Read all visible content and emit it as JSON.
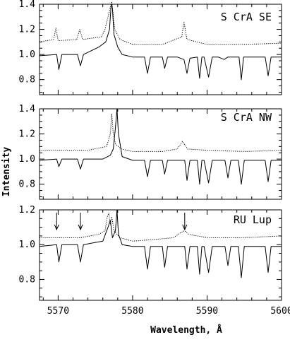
{
  "chart_data": {
    "type": "line",
    "xlabel": "Wavelength, Å",
    "ylabel": "Intensity",
    "xlim": [
      5567.5,
      5600
    ],
    "x_ticks": [
      "5570",
      "5580",
      "5590",
      "5600"
    ],
    "line_color": "#000000",
    "background": "#ffffff",
    "panels": [
      {
        "label": "S CrA SE",
        "ylim": [
          0.68,
          1.4
        ],
        "y_ticks": [
          "0.8",
          "1.0",
          "1.2",
          "1.4"
        ],
        "series": [
          {
            "style": "dotted",
            "x": [
              5567.5,
              5569.4,
              5569.7,
              5570.0,
              5572.5,
              5572.9,
              5573.3,
              5575.8,
              5576.3,
              5576.9,
              5577.2,
              5577.6,
              5578.3,
              5580,
              5582,
              5584,
              5586.6,
              5586.9,
              5587.3,
              5590,
              5595,
              5600
            ],
            "y": [
              1.1,
              1.12,
              1.21,
              1.11,
              1.12,
              1.2,
              1.12,
              1.14,
              1.2,
              1.35,
              1.42,
              1.2,
              1.12,
              1.08,
              1.08,
              1.08,
              1.14,
              1.26,
              1.12,
              1.08,
              1.08,
              1.09
            ]
          },
          {
            "style": "solid",
            "x": [
              5567.5,
              5569.8,
              5570.1,
              5570.5,
              5572.6,
              5573.0,
              5573.4,
              5575.5,
              5576.4,
              5576.9,
              5577.1,
              5577.2,
              5577.3,
              5577.5,
              5578.0,
              5578.6,
              5580,
              5581.6,
              5582.0,
              5582.4,
              5584,
              5584.3,
              5584.7,
              5586,
              5586.9,
              5587.3,
              5587.7,
              5588.7,
              5589.0,
              5589.3,
              5589.6,
              5590.2,
              5590.7,
              5591.5,
              5592.3,
              5592.8,
              5594.3,
              5594.6,
              5594.9,
              5595.5,
              5597.8,
              5598.2,
              5598.6,
              5600
            ],
            "y": [
              0.99,
              1.0,
              0.88,
              1.0,
              1.0,
              0.91,
              1.0,
              1.06,
              1.1,
              1.2,
              1.38,
              1.4,
              1.36,
              1.16,
              1.06,
              1.0,
              0.98,
              0.98,
              0.85,
              0.98,
              0.98,
              0.89,
              0.98,
              0.98,
              0.96,
              0.85,
              0.97,
              0.98,
              0.81,
              0.98,
              0.98,
              0.82,
              0.98,
              0.98,
              0.96,
              0.98,
              0.98,
              0.8,
              0.98,
              0.98,
              0.98,
              0.83,
              0.98,
              0.98
            ]
          }
        ]
      },
      {
        "label": "S CrA NW",
        "ylim": [
          0.68,
          1.4
        ],
        "y_ticks": [
          "0.8",
          "1.0",
          "1.2",
          "1.4"
        ],
        "series": [
          {
            "style": "dotted",
            "x": [
              5567.5,
              5570,
              5574,
              5576.5,
              5577.0,
              5577.2,
              5577.4,
              5577.7,
              5578.5,
              5580,
              5584,
              5586,
              5586.7,
              5587.4,
              5590,
              5595,
              5600
            ],
            "y": [
              1.07,
              1.07,
              1.07,
              1.1,
              1.2,
              1.36,
              1.2,
              1.12,
              1.08,
              1.06,
              1.06,
              1.08,
              1.14,
              1.08,
              1.07,
              1.06,
              1.07
            ]
          },
          {
            "style": "solid",
            "x": [
              5567.5,
              5569.8,
              5570.1,
              5570.5,
              5572.6,
              5573.0,
              5573.4,
              5576.0,
              5577.0,
              5577.4,
              5577.7,
              5577.9,
              5578.1,
              5578.6,
              5580,
              5581.6,
              5582.0,
              5582.4,
              5584,
              5584.3,
              5584.7,
              5587.0,
              5587.3,
              5587.7,
              5588.7,
              5589.0,
              5589.3,
              5589.6,
              5590.2,
              5590.7,
              5592.4,
              5592.8,
              5593.2,
              5594.2,
              5594.6,
              5595.0,
              5597.8,
              5598.2,
              5598.6,
              5600
            ],
            "y": [
              0.99,
              1.0,
              0.94,
              1.0,
              1.0,
              0.92,
              1.0,
              1.0,
              1.03,
              1.08,
              1.25,
              1.4,
              1.2,
              1.02,
              0.99,
              0.99,
              0.86,
              0.99,
              0.99,
              0.88,
              0.99,
              0.99,
              0.83,
              0.99,
              0.99,
              0.8,
              0.99,
              0.99,
              0.81,
              0.99,
              0.99,
              0.85,
              0.99,
              0.99,
              0.8,
              0.99,
              0.99,
              0.82,
              0.99,
              0.99
            ]
          }
        ]
      },
      {
        "label": "RU Lup",
        "ylim": [
          0.68,
          1.2
        ],
        "y_ticks": [
          "0.8",
          "1.0",
          "1.2"
        ],
        "series": [
          {
            "style": "dotted",
            "x": [
              5567.5,
              5570,
              5573,
              5575.5,
              5576.3,
              5576.6,
              5576.8,
              5577.0,
              5577.2,
              5577.5,
              5578.3,
              5580,
              5583,
              5585.5,
              5586.5,
              5587.0,
              5587.5,
              5590,
              5595,
              5600
            ],
            "y": [
              1.04,
              1.04,
              1.04,
              1.06,
              1.08,
              1.16,
              1.18,
              1.12,
              1.16,
              1.08,
              1.04,
              1.02,
              1.03,
              1.04,
              1.07,
              1.08,
              1.06,
              1.04,
              1.04,
              1.05
            ]
          },
          {
            "style": "solid",
            "x": [
              5567.5,
              5569.8,
              5570.1,
              5570.5,
              5572.6,
              5573.0,
              5573.4,
              5576.0,
              5576.7,
              5577.0,
              5577.3,
              5577.7,
              5577.9,
              5578.1,
              5578.6,
              5580,
              5581.6,
              5582.0,
              5582.4,
              5584,
              5584.3,
              5584.7,
              5587.0,
              5587.3,
              5587.7,
              5588.7,
              5589.0,
              5589.3,
              5589.6,
              5590.2,
              5590.7,
              5592.4,
              5592.8,
              5593.2,
              5594.2,
              5594.6,
              5595.0,
              5597.8,
              5598.2,
              5598.6,
              5600
            ],
            "y": [
              0.99,
              1.0,
              0.9,
              1.0,
              1.0,
              0.9,
              1.0,
              1.02,
              1.1,
              1.14,
              1.04,
              1.08,
              1.2,
              1.06,
              1.0,
              0.99,
              0.99,
              0.86,
              0.99,
              0.99,
              0.87,
              0.99,
              0.99,
              0.86,
              0.99,
              0.99,
              0.83,
              0.99,
              0.99,
              0.84,
              0.99,
              0.99,
              0.88,
              0.99,
              0.99,
              0.81,
              0.99,
              0.99,
              0.84,
              0.99,
              0.99
            ]
          }
        ],
        "arrows_at": [
          5569.8,
          5573.0,
          5587.0
        ]
      }
    ]
  }
}
